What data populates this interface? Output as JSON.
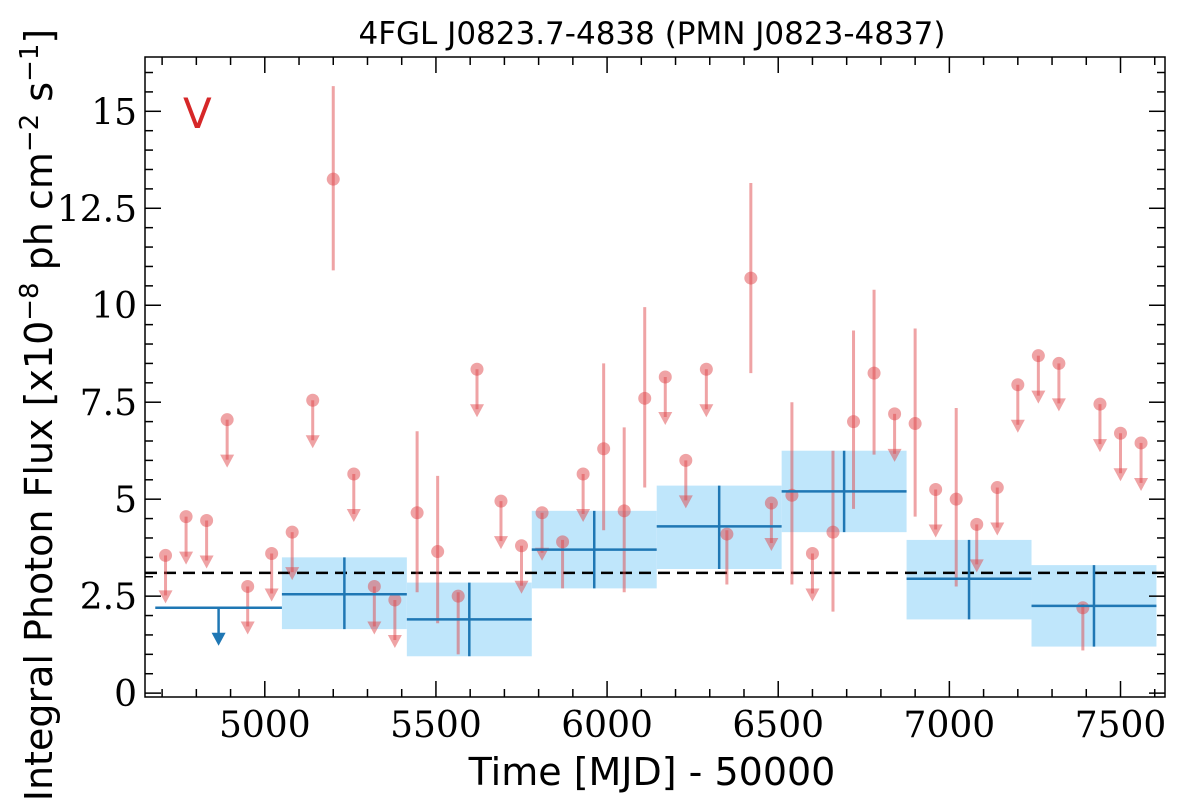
{
  "chart_data": {
    "type": "scatter",
    "title": "4FGL J0823.7-4838 (PMN J0823-4837)",
    "xlabel": "Time [MJD] - 50000",
    "ylabel_parts": {
      "prefix": "Integral Photon Flux [x10",
      "exp1": "−8",
      "middle": " ph cm",
      "exp2": "−2",
      "middle2": " s",
      "exp3": "−1",
      "suffix": "]"
    },
    "panel_label": "V",
    "xlim": [
      4650,
      7630
    ],
    "ylim": [
      -0.1,
      16.4
    ],
    "x_ticks": [
      {
        "value": 5000,
        "label": "5000"
      },
      {
        "value": 5500,
        "label": "5500"
      },
      {
        "value": 6000,
        "label": "6000"
      },
      {
        "value": 6500,
        "label": "6500"
      },
      {
        "value": 7000,
        "label": "7000"
      },
      {
        "value": 7500,
        "label": "7500"
      }
    ],
    "y_ticks": [
      {
        "value": 0,
        "label": "0"
      },
      {
        "value": 2.5,
        "label": "2.5"
      },
      {
        "value": 5,
        "label": "5"
      },
      {
        "value": 7.5,
        "label": "7.5"
      },
      {
        "value": 10,
        "label": "10"
      },
      {
        "value": 12.5,
        "label": "12.5"
      },
      {
        "value": 15,
        "label": "15"
      }
    ],
    "average_flux": 3.1,
    "colors": {
      "short_bins": "#e0474c",
      "long_bins": "#1f77b4",
      "band_fill": "#bfe6fb",
      "average_line": "#000000",
      "panel_label": "#d62728"
    },
    "series": [
      {
        "kind": "short_bins_detections",
        "points": [
          {
            "x": 5200,
            "y": 13.25,
            "ylo": 10.9,
            "yhi": 15.65
          },
          {
            "x": 5445,
            "y": 4.65,
            "ylo": 2.6,
            "yhi": 6.75
          },
          {
            "x": 5505,
            "y": 3.65,
            "ylo": 1.8,
            "yhi": 5.6
          },
          {
            "x": 5565,
            "y": 2.5,
            "ylo": 1.0,
            "yhi": 2.6
          },
          {
            "x": 5870,
            "y": 3.9,
            "ylo": 2.7,
            "yhi": 3.95
          },
          {
            "x": 5990,
            "y": 6.3,
            "ylo": 4.2,
            "yhi": 8.5
          },
          {
            "x": 6050,
            "y": 4.7,
            "ylo": 2.6,
            "yhi": 6.85
          },
          {
            "x": 6110,
            "y": 7.6,
            "ylo": 5.3,
            "yhi": 9.95
          },
          {
            "x": 6350,
            "y": 4.1,
            "ylo": 2.8,
            "yhi": 4.2
          },
          {
            "x": 6420,
            "y": 10.7,
            "ylo": 8.25,
            "yhi": 13.15
          },
          {
            "x": 6540,
            "y": 5.1,
            "ylo": 2.8,
            "yhi": 7.5
          },
          {
            "x": 6660,
            "y": 4.15,
            "ylo": 2.1,
            "yhi": 6.25
          },
          {
            "x": 6720,
            "y": 7.0,
            "ylo": 4.75,
            "yhi": 9.35
          },
          {
            "x": 6780,
            "y": 8.25,
            "ylo": 6.15,
            "yhi": 10.4
          },
          {
            "x": 6900,
            "y": 6.95,
            "ylo": 4.55,
            "yhi": 9.4
          },
          {
            "x": 7020,
            "y": 5.0,
            "ylo": 2.75,
            "yhi": 7.35
          },
          {
            "x": 7390,
            "y": 2.2,
            "ylo": 1.1,
            "yhi": 2.3
          }
        ]
      },
      {
        "kind": "short_bins_upper_limits",
        "points": [
          {
            "x": 4710,
            "y": 3.55
          },
          {
            "x": 4770,
            "y": 4.55
          },
          {
            "x": 4830,
            "y": 4.45
          },
          {
            "x": 4890,
            "y": 7.05
          },
          {
            "x": 4950,
            "y": 2.75
          },
          {
            "x": 5020,
            "y": 3.6
          },
          {
            "x": 5080,
            "y": 4.15
          },
          {
            "x": 5140,
            "y": 7.55
          },
          {
            "x": 5260,
            "y": 5.65
          },
          {
            "x": 5320,
            "y": 2.75
          },
          {
            "x": 5380,
            "y": 2.4
          },
          {
            "x": 5620,
            "y": 8.35
          },
          {
            "x": 5690,
            "y": 4.95
          },
          {
            "x": 5750,
            "y": 3.8
          },
          {
            "x": 5810,
            "y": 4.65
          },
          {
            "x": 5930,
            "y": 5.65
          },
          {
            "x": 6170,
            "y": 8.15
          },
          {
            "x": 6230,
            "y": 6.0
          },
          {
            "x": 6290,
            "y": 8.35
          },
          {
            "x": 6480,
            "y": 4.9
          },
          {
            "x": 6600,
            "y": 3.6
          },
          {
            "x": 6840,
            "y": 7.2
          },
          {
            "x": 6960,
            "y": 5.25
          },
          {
            "x": 7080,
            "y": 4.35
          },
          {
            "x": 7140,
            "y": 5.3
          },
          {
            "x": 7200,
            "y": 7.95
          },
          {
            "x": 7260,
            "y": 8.7
          },
          {
            "x": 7320,
            "y": 8.5
          },
          {
            "x": 7440,
            "y": 7.45
          },
          {
            "x": 7500,
            "y": 6.7
          },
          {
            "x": 7560,
            "y": 6.45
          }
        ]
      },
      {
        "kind": "long_bins",
        "bins": [
          {
            "x0": 4680,
            "x1": 5050,
            "y": 2.2,
            "upper_limit": true
          },
          {
            "x0": 5050,
            "x1": 5415,
            "y": 2.55,
            "ylo": 1.65,
            "yhi": 3.5
          },
          {
            "x0": 5415,
            "x1": 5780,
            "y": 1.9,
            "ylo": 0.95,
            "yhi": 2.85
          },
          {
            "x0": 5780,
            "x1": 6145,
            "y": 3.7,
            "ylo": 2.7,
            "yhi": 4.7
          },
          {
            "x0": 6145,
            "x1": 6510,
            "y": 4.3,
            "ylo": 3.2,
            "yhi": 5.35
          },
          {
            "x0": 6510,
            "x1": 6875,
            "y": 5.2,
            "ylo": 4.15,
            "yhi": 6.25
          },
          {
            "x0": 6875,
            "x1": 7240,
            "y": 2.95,
            "ylo": 1.9,
            "yhi": 3.95
          },
          {
            "x0": 7240,
            "x1": 7605,
            "y": 2.25,
            "ylo": 1.2,
            "yhi": 3.3
          }
        ]
      }
    ]
  }
}
